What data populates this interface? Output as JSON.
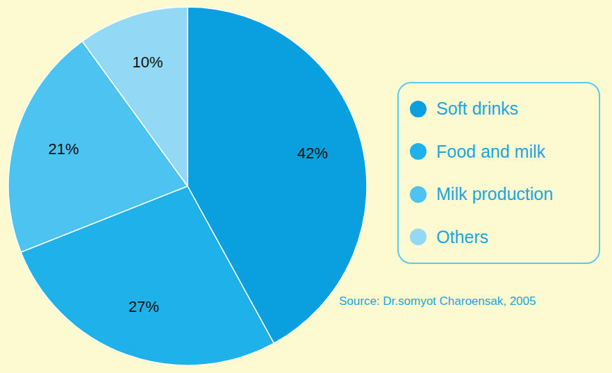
{
  "chart_data": {
    "type": "pie",
    "categories": [
      "Soft drinks",
      "Food and milk",
      "Milk production",
      "Others"
    ],
    "values": [
      42,
      27,
      21,
      10
    ],
    "value_labels": [
      "42%",
      "27%",
      "21%",
      "10%"
    ],
    "colors": [
      "#0a9fdf",
      "#1fb1ea",
      "#4cc3f0",
      "#93d9f5"
    ],
    "data_labels": true,
    "legend": "right",
    "caption": "Source: Dr.somyot Charoensak, 2005"
  }
}
